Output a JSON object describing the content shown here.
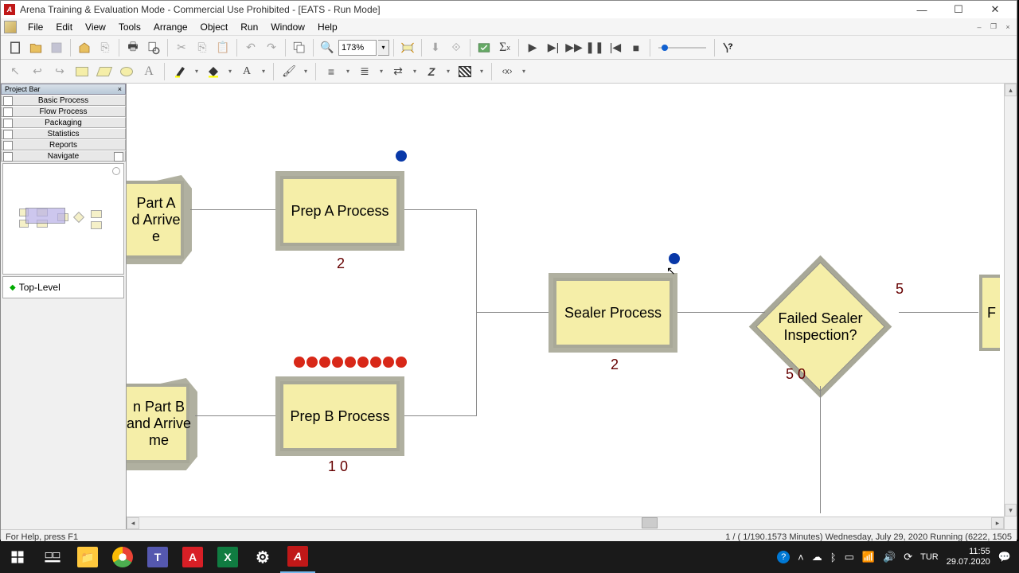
{
  "window": {
    "title": "Arena Training & Evaluation Mode - Commercial Use Prohibited - [EATS - Run Mode]"
  },
  "menu": {
    "file": "File",
    "edit": "Edit",
    "view": "View",
    "tools": "Tools",
    "arrange": "Arrange",
    "object": "Object",
    "run": "Run",
    "window": "Window",
    "help": "Help"
  },
  "toolbar": {
    "zoom": "173%"
  },
  "sidebar": {
    "title": "Project Bar",
    "sections": {
      "basic": "Basic Process",
      "flow": "Flow Process",
      "packaging": "Packaging",
      "statistics": "Statistics",
      "reports": "Reports",
      "navigate": "Navigate"
    },
    "toplevel": "Top-Level"
  },
  "flowchart": {
    "node_fill": "#f5eea8",
    "node_border": "#a8a898",
    "part_a_arrive": "Part A\nd Arrive\ne",
    "part_b_arrive": "n Part B\nand Arrive\nme",
    "prep_a": "Prep A Process",
    "prep_a_count": "2",
    "prep_b": "Prep B Process",
    "prep_b_count": "1  0",
    "sealer": "Sealer Process",
    "sealer_count": "2",
    "decision": "Failed Sealer Inspection?",
    "decision_top": "5",
    "decision_bottom": "5  0",
    "partial_right": "F",
    "prep_a_queue_blue": 1,
    "prep_b_queue_red": 9,
    "sealer_queue_blue": 1,
    "entity_colors": {
      "blue": "#0838a8",
      "red": "#d82818"
    }
  },
  "status": {
    "left": "For Help, press F1",
    "right": "1 / ( 1/190.1573  Minutes)  Wednesday, July 29, 2020            Running    (6222, 1505"
  },
  "taskbar": {
    "time": "11:55",
    "date": "29.07.2020",
    "lang": "TUR"
  }
}
